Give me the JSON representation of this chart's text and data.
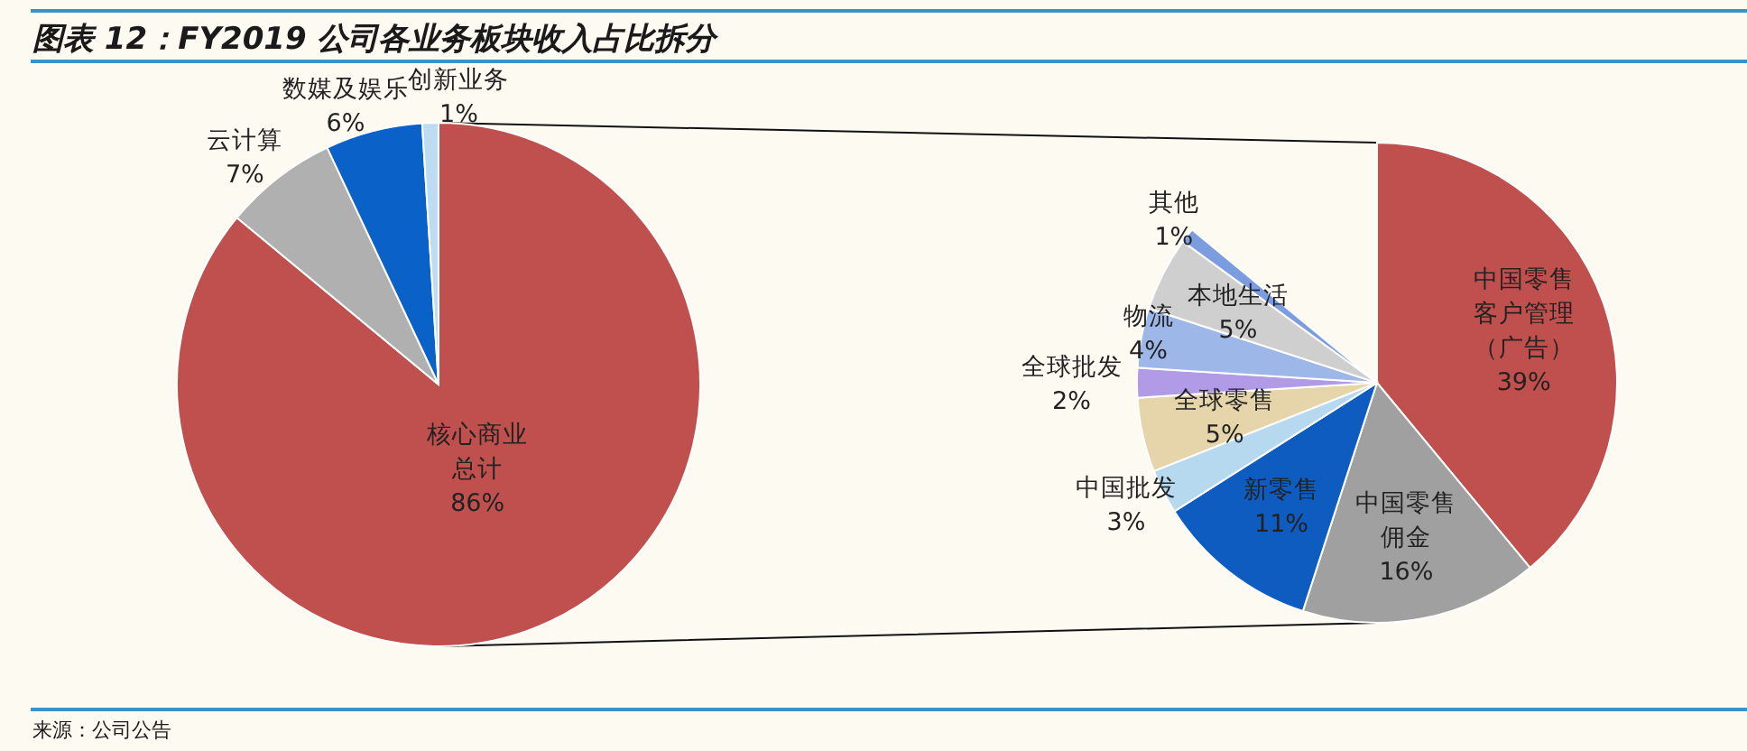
{
  "chart_data": [
    {
      "type": "pie",
      "title": "图表 12：FY2019 公司各业务板块收入占比拆分",
      "categories": [
        "核心商业总计",
        "云计算",
        "数媒及娱乐",
        "创新业务"
      ],
      "values": [
        86,
        7,
        6,
        1
      ],
      "value_labels": [
        "86%",
        "7%",
        "6%",
        "1%"
      ],
      "colors": [
        "#c0504d",
        "#b0b0b0",
        "#0a62c8",
        "#bcdcf4"
      ],
      "annotations": [
        "来源：公司公告"
      ]
    },
    {
      "type": "pie",
      "categories": [
        "中国零售客户管理（广告）",
        "中国零售佣金",
        "新零售",
        "中国批发",
        "全球零售",
        "全球批发",
        "物流",
        "本地生活",
        "其他"
      ],
      "values": [
        39,
        16,
        11,
        3,
        5,
        2,
        4,
        5,
        1
      ],
      "value_labels": [
        "39%",
        "16%",
        "11%",
        "3%",
        "5%",
        "2%",
        "4%",
        "5%",
        "1%"
      ],
      "colors": [
        "#c0504d",
        "#a0a0a0",
        "#0f5cc0",
        "#b7d9ef",
        "#e6d5aa",
        "#b19ae6",
        "#9db7e8",
        "#cfcfcf",
        "#7c9ce0"
      ]
    }
  ]
}
